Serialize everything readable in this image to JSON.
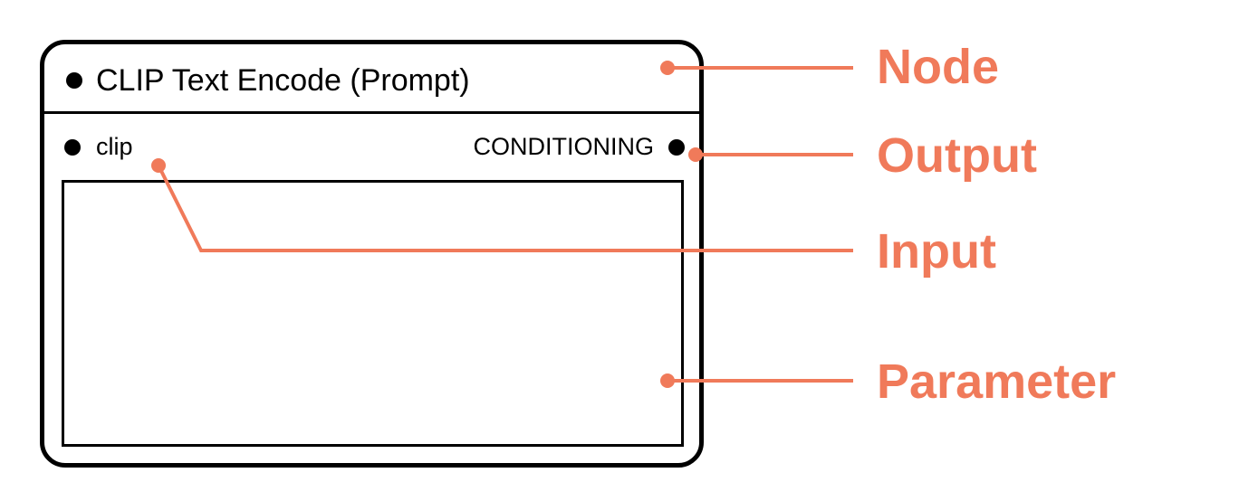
{
  "node": {
    "title": "CLIP Text Encode (Prompt)",
    "input_label": "clip",
    "output_label": "CONDITIONING"
  },
  "callouts": [
    {
      "label": "Node"
    },
    {
      "label": "Output"
    },
    {
      "label": "Input"
    },
    {
      "label": "Parameter"
    }
  ],
  "colors": {
    "accent": "#F07A5A",
    "outline": "#000000",
    "background": "#FFFFFF"
  }
}
